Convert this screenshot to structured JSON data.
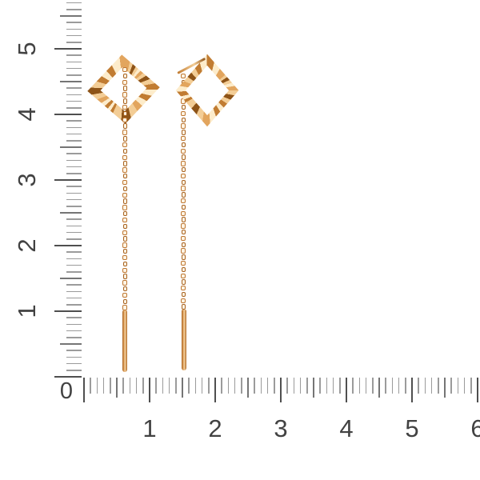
{
  "scene": {
    "description": "Pair of gold threader earrings with faceted open rhombus charms, cable chains and bar pins, photographed on a white background beside centimeter rulers",
    "background_color": "#ffffff"
  },
  "rulers": {
    "origin_label": "0",
    "vertical_labels": [
      "1",
      "2",
      "3",
      "4",
      "5"
    ],
    "horizontal_labels": [
      "1",
      "2",
      "3",
      "4",
      "5",
      "6"
    ],
    "label_color": "#424242",
    "tick_color_major": "#4f4f4f",
    "tick_color_medium": "#757575",
    "tick_color_minor": "#9b9b9b"
  },
  "product": {
    "name": "gold square threader earrings",
    "gold_highlight": "#fdeccb",
    "gold_light": "#f3cd96",
    "gold_mid": "#e2a55e",
    "gold_deep": "#c17c32",
    "gold_shadow": "#8e5418",
    "chain_outline_color": "#bf7731",
    "chain_fill_color": "#fdf4e4"
  }
}
